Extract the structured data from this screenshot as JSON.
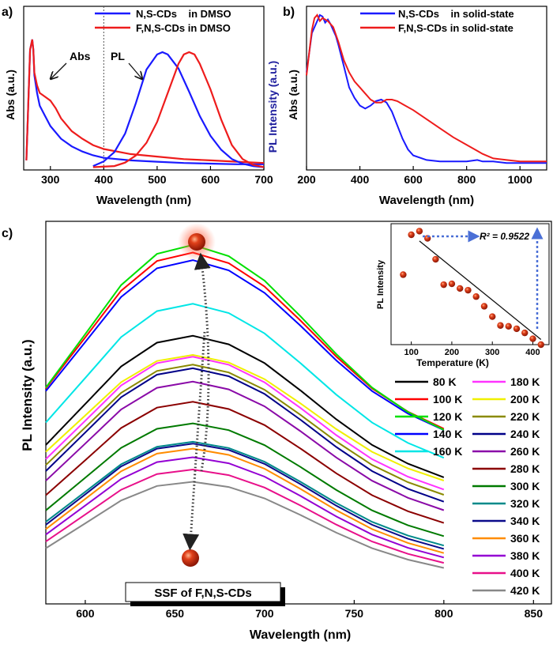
{
  "colors": {
    "ncd": "#1a1aff",
    "fncd": "#ee1c1c",
    "ylabel_blue": "#1e1e9e",
    "arrow_dashed": "#4a6fd6",
    "sphere": "#d62b0f"
  },
  "chart_data": [
    {
      "panel": "a)",
      "type": "line",
      "xlabel": "Wavelength (nm)",
      "ylabel_left": "Abs (a.u.)",
      "ylabel_right": "PL Intensity (a.u.)",
      "xlim": [
        250,
        700
      ],
      "xticks": [
        300,
        400,
        500,
        600,
        700
      ],
      "divider_x": 400,
      "annotations": [
        "Abs",
        "PL"
      ],
      "series": [
        {
          "name": "N,S-CDs    in DMSO",
          "color": "#1a1aff",
          "role": "legend"
        },
        {
          "name": "F,N,S-CDs in DMSO",
          "color": "#ee1c1c",
          "role": "legend"
        },
        {
          "legend_ref": 0,
          "color": "#1a1aff",
          "kind": "abs",
          "x": [
            255,
            262,
            266,
            268,
            270,
            275,
            280,
            290,
            300,
            320,
            340,
            360,
            380,
            400,
            450,
            500,
            550,
            600,
            650,
            700
          ],
          "y": [
            0.05,
            0.92,
            1.0,
            0.92,
            0.72,
            0.58,
            0.48,
            0.4,
            0.32,
            0.22,
            0.16,
            0.12,
            0.09,
            0.07,
            0.05,
            0.04,
            0.03,
            0.025,
            0.02,
            0.02
          ]
        },
        {
          "legend_ref": 1,
          "color": "#ee1c1c",
          "kind": "abs",
          "x": [
            255,
            262,
            266,
            268,
            270,
            275,
            280,
            290,
            300,
            310,
            320,
            340,
            360,
            380,
            400,
            450,
            500,
            550,
            600,
            650,
            700
          ],
          "y": [
            0.05,
            0.92,
            1.0,
            0.92,
            0.74,
            0.64,
            0.58,
            0.55,
            0.52,
            0.46,
            0.38,
            0.28,
            0.22,
            0.17,
            0.14,
            0.1,
            0.08,
            0.06,
            0.05,
            0.04,
            0.03
          ]
        },
        {
          "legend_ref": 0,
          "color": "#1a1aff",
          "kind": "pl",
          "x": [
            380,
            400,
            420,
            440,
            460,
            480,
            500,
            510,
            520,
            540,
            560,
            580,
            600,
            620,
            640,
            660,
            680,
            700
          ],
          "y": [
            0.02,
            0.06,
            0.14,
            0.3,
            0.56,
            0.85,
            0.98,
            1.0,
            0.98,
            0.86,
            0.66,
            0.45,
            0.28,
            0.16,
            0.08,
            0.04,
            0.02,
            0.01
          ]
        },
        {
          "legend_ref": 1,
          "color": "#ee1c1c",
          "kind": "pl",
          "x": [
            380,
            420,
            440,
            460,
            480,
            500,
            520,
            540,
            550,
            560,
            570,
            580,
            600,
            620,
            640,
            660,
            680,
            700
          ],
          "y": [
            0.01,
            0.02,
            0.05,
            0.11,
            0.22,
            0.4,
            0.65,
            0.9,
            0.98,
            1.0,
            0.98,
            0.9,
            0.68,
            0.42,
            0.2,
            0.08,
            0.03,
            0.01
          ]
        }
      ]
    },
    {
      "panel": "b)",
      "type": "line",
      "xlabel": "Wavelength (nm)",
      "ylabel_left": "Abs (a.u.)",
      "xlim": [
        200,
        1100
      ],
      "xticks": [
        200,
        400,
        600,
        800,
        1000
      ],
      "series": [
        {
          "name": "N,S-CDs    in solid-state",
          "color": "#1a1aff",
          "x": [
            200,
            220,
            240,
            250,
            260,
            270,
            280,
            290,
            300,
            310,
            320,
            340,
            360,
            380,
            400,
            420,
            440,
            460,
            480,
            500,
            520,
            540,
            560,
            580,
            600,
            650,
            700,
            750,
            800,
            840,
            860,
            900,
            950,
            1000,
            1050,
            1100
          ],
          "y": [
            0.62,
            0.88,
            0.96,
            1.0,
            0.99,
            0.95,
            0.97,
            0.94,
            0.9,
            0.86,
            0.8,
            0.66,
            0.52,
            0.45,
            0.4,
            0.38,
            0.4,
            0.43,
            0.44,
            0.42,
            0.36,
            0.27,
            0.18,
            0.11,
            0.07,
            0.04,
            0.03,
            0.03,
            0.03,
            0.04,
            0.03,
            0.03,
            0.02,
            0.02,
            0.02,
            0.02
          ]
        },
        {
          "name": "F,N,S-CDs in solid-state",
          "color": "#ee1c1c",
          "x": [
            200,
            220,
            230,
            240,
            250,
            260,
            280,
            300,
            320,
            340,
            360,
            380,
            400,
            420,
            440,
            460,
            480,
            500,
            520,
            540,
            560,
            600,
            650,
            700,
            750,
            800,
            840,
            860,
            900,
            950,
            1000,
            1050,
            1100
          ],
          "y": [
            0.6,
            0.9,
            0.98,
            1.0,
            0.96,
            0.98,
            0.96,
            0.92,
            0.82,
            0.7,
            0.62,
            0.56,
            0.52,
            0.48,
            0.44,
            0.42,
            0.42,
            0.44,
            0.44,
            0.43,
            0.41,
            0.37,
            0.31,
            0.25,
            0.19,
            0.14,
            0.1,
            0.08,
            0.05,
            0.04,
            0.03,
            0.03,
            0.03
          ]
        }
      ]
    },
    {
      "panel": "c)",
      "type": "line",
      "xlabel": "Wavelength (nm)",
      "ylabel": "PL Intensity (a.u.)",
      "xlim": [
        578,
        860
      ],
      "xticks": [
        600,
        650,
        700,
        750,
        800,
        850
      ],
      "annotation": "SSF of F,N,S-CDs",
      "curve_x": [
        578,
        600,
        620,
        640,
        660,
        680,
        700,
        720,
        740,
        760,
        780,
        800
      ],
      "profile": [
        0.36,
        0.6,
        0.82,
        0.96,
        1.0,
        0.95,
        0.84,
        0.68,
        0.51,
        0.36,
        0.25,
        0.17
      ],
      "series": [
        {
          "name": "80 K",
          "color": "#000000",
          "peak": 0.735,
          "base": 0.262
        },
        {
          "name": "100 K",
          "color": "#ff0000",
          "peak": 0.966,
          "base": 0.377
        },
        {
          "name": "120 K",
          "color": "#00e000",
          "peak": 0.987,
          "base": 0.369
        },
        {
          "name": "140 K",
          "color": "#0000ff",
          "peak": 0.945,
          "base": 0.377
        },
        {
          "name": "160 K",
          "color": "#00e6e6",
          "peak": 0.824,
          "base": 0.309
        },
        {
          "name": "180 K",
          "color": "#ff33ff",
          "peak": 0.677,
          "base": 0.233
        },
        {
          "name": "200 K",
          "color": "#f0f000",
          "peak": 0.682,
          "base": 0.262
        },
        {
          "name": "220 K",
          "color": "#8a8a00",
          "peak": 0.655,
          "base": 0.22
        },
        {
          "name": "240 K",
          "color": "#000088",
          "peak": 0.645,
          "base": 0.199
        },
        {
          "name": "260 K",
          "color": "#8a0aa8",
          "peak": 0.608,
          "base": 0.178
        },
        {
          "name": "280 K",
          "color": "#8b0000",
          "peak": 0.552,
          "base": 0.147
        },
        {
          "name": "300 K",
          "color": "#007a00",
          "peak": 0.492,
          "base": 0.115
        },
        {
          "name": "320 K",
          "color": "#008a8a",
          "peak": 0.441,
          "base": 0.094
        },
        {
          "name": "340 K",
          "color": "#0a0a8a",
          "peak": 0.436,
          "base": 0.084
        },
        {
          "name": "360 K",
          "color": "#ff8c00",
          "peak": 0.422,
          "base": 0.073
        },
        {
          "name": "380 K",
          "color": "#9400d3",
          "peak": 0.398,
          "base": 0.063
        },
        {
          "name": "400 K",
          "color": "#e8108a",
          "peak": 0.364,
          "base": 0.052
        },
        {
          "name": "420 K",
          "color": "#888888",
          "peak": 0.33,
          "base": 0.042
        }
      ],
      "inset": {
        "type": "scatter",
        "xlabel": "Temperature (K)",
        "ylabel": "PL Intensity",
        "xlim": [
          50,
          440
        ],
        "ylim": [
          0.33,
          1.03
        ],
        "xticks": [
          100,
          200,
          300,
          400
        ],
        "fit_label": "R² = 0.9522",
        "x": [
          80,
          100,
          120,
          140,
          160,
          180,
          200,
          220,
          240,
          260,
          280,
          300,
          320,
          340,
          360,
          380,
          400,
          420
        ],
        "y": [
          0.735,
          0.966,
          0.987,
          0.945,
          0.824,
          0.677,
          0.682,
          0.655,
          0.645,
          0.608,
          0.552,
          0.492,
          0.441,
          0.436,
          0.422,
          0.398,
          0.364,
          0.33
        ],
        "fit": {
          "x": [
            120,
            420
          ],
          "y": [
            0.93,
            0.36
          ]
        }
      }
    }
  ]
}
